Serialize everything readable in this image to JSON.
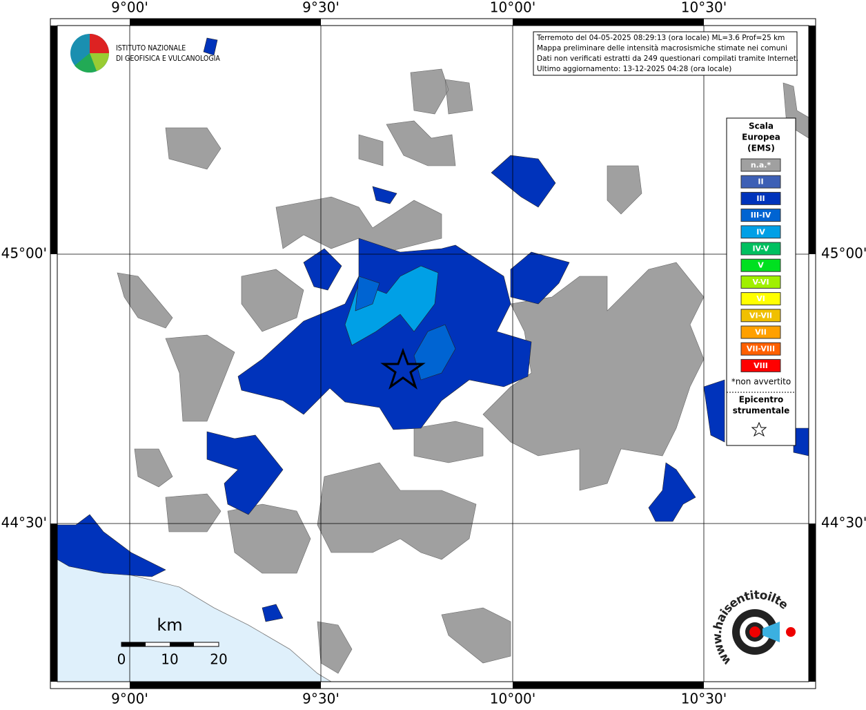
{
  "grid": {
    "lon_labels": [
      "9°00'",
      "9°30'",
      "10°00'",
      "10°30'"
    ],
    "lat_labels": [
      "45°00'",
      "44°30'"
    ]
  },
  "info": [
    "Terremoto del 04-05-2025 08:29:13 (ora locale) ML=3.6 Prof=25 km",
    "Mappa preliminare delle intensità macrosismiche stimate nei comuni",
    "Dati non verificati estratti da 249 questionari compilati tramite Internet.",
    "Ultimo aggiornamento: 13-12-2025 04:28 (ora locale)"
  ],
  "logo": [
    "ISTITUTO NAZIONALE",
    "DI GEOFISICA E VULCANOLOGIA"
  ],
  "legend": {
    "title": [
      "Scala",
      "Europea",
      "(EMS)"
    ],
    "classes": [
      {
        "label": "n.a.*",
        "color": "#a0a0a0"
      },
      {
        "label": "II",
        "color": "#3d5fb5"
      },
      {
        "label": "III",
        "color": "#0033bb"
      },
      {
        "label": "III-IV",
        "color": "#0064d2"
      },
      {
        "label": "IV",
        "color": "#00a0e6"
      },
      {
        "label": "IV-V",
        "color": "#00c060"
      },
      {
        "label": "V",
        "color": "#00e020"
      },
      {
        "label": "V-VI",
        "color": "#a0f000"
      },
      {
        "label": "VI",
        "color": "#ffff00"
      },
      {
        "label": "VI-VII",
        "color": "#f0c000"
      },
      {
        "label": "VII",
        "color": "#ffa000"
      },
      {
        "label": "VII-VIII",
        "color": "#ff6000"
      },
      {
        "label": "VIII",
        "color": "#ff0000"
      }
    ],
    "note": "*non avvertito",
    "epicenter": [
      "Epicentro",
      "strumentale"
    ]
  },
  "scale": {
    "unit": "km",
    "ticks": [
      "0",
      "10",
      "20"
    ]
  },
  "site": "www.haisentitoilterremoto.it"
}
